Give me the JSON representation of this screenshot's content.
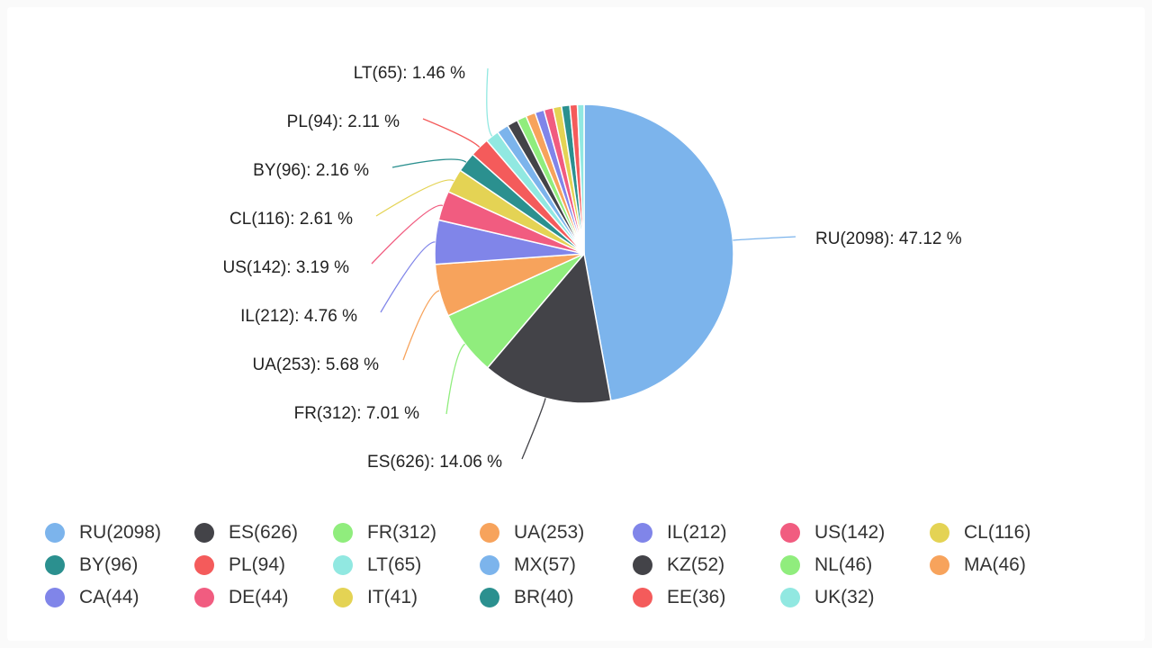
{
  "chart_data": {
    "type": "pie",
    "title": "",
    "slices": [
      {
        "name": "RU",
        "value": 2098,
        "label": "RU(2098): 47.12 %",
        "legend": "RU(2098)",
        "color": "#7cb4ec"
      },
      {
        "name": "ES",
        "value": 626,
        "label": "ES(626): 14.06 %",
        "legend": "ES(626)",
        "color": "#434348"
      },
      {
        "name": "FR",
        "value": 312,
        "label": "FR(312): 7.01 %",
        "legend": "FR(312)",
        "color": "#90ed7d"
      },
      {
        "name": "UA",
        "value": 253,
        "label": "UA(253): 5.68 %",
        "legend": "UA(253)",
        "color": "#f7a35c"
      },
      {
        "name": "IL",
        "value": 212,
        "label": "IL(212): 4.76 %",
        "legend": "IL(212)",
        "color": "#8085e9"
      },
      {
        "name": "US",
        "value": 142,
        "label": "US(142): 3.19 %",
        "legend": "US(142)",
        "color": "#f15c80"
      },
      {
        "name": "CL",
        "value": 116,
        "label": "CL(116): 2.61 %",
        "legend": "CL(116)",
        "color": "#e4d354"
      },
      {
        "name": "BY",
        "value": 96,
        "label": "BY(96): 2.16 %",
        "legend": "BY(96)",
        "color": "#2b908f"
      },
      {
        "name": "PL",
        "value": 94,
        "label": "PL(94): 2.11 %",
        "legend": "PL(94)",
        "color": "#f45b5b"
      },
      {
        "name": "LT",
        "value": 65,
        "label": "LT(65): 1.46 %",
        "legend": "LT(65)",
        "color": "#91e8e1"
      },
      {
        "name": "MX",
        "value": 57,
        "legend": "MX(57)",
        "color": "#7cb4ec"
      },
      {
        "name": "KZ",
        "value": 52,
        "legend": "KZ(52)",
        "color": "#434348"
      },
      {
        "name": "NL",
        "value": 46,
        "legend": "NL(46)",
        "color": "#90ed7d"
      },
      {
        "name": "MA",
        "value": 46,
        "legend": "MA(46)",
        "color": "#f7a35c"
      },
      {
        "name": "CA",
        "value": 44,
        "legend": "CA(44)",
        "color": "#8085e9"
      },
      {
        "name": "DE",
        "value": 44,
        "legend": "DE(44)",
        "color": "#f15c80"
      },
      {
        "name": "IT",
        "value": 41,
        "legend": "IT(41)",
        "color": "#e4d354"
      },
      {
        "name": "BR",
        "value": 40,
        "legend": "BR(40)",
        "color": "#2b908f"
      },
      {
        "name": "EE",
        "value": 36,
        "legend": "EE(36)",
        "color": "#f45b5b"
      },
      {
        "name": "UK",
        "value": 32,
        "legend": "UK(32)",
        "color": "#91e8e1"
      }
    ],
    "legend_position": "bottom"
  }
}
